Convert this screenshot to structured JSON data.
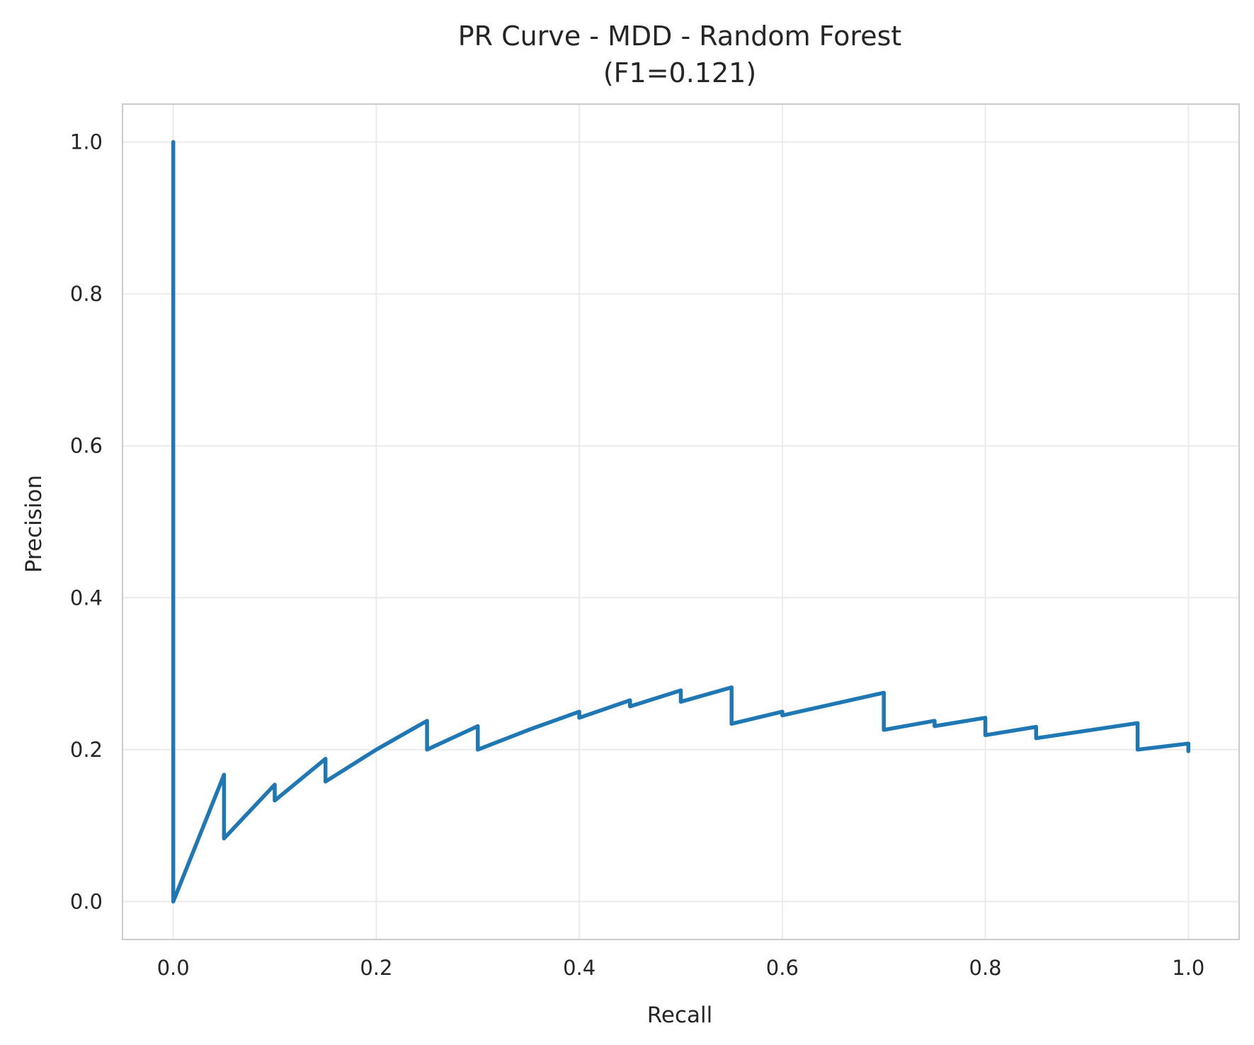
{
  "chart_data": {
    "type": "line",
    "title_line1": "PR Curve - MDD - Random Forest",
    "title_line2": "(F1=0.121)",
    "xlabel": "Recall",
    "ylabel": "Precision",
    "xlim": [
      -0.05,
      1.05
    ],
    "ylim": [
      -0.05,
      1.05
    ],
    "xticks": [
      0.0,
      0.2,
      0.4,
      0.6,
      0.8,
      1.0
    ],
    "xtick_labels": [
      "0.0",
      "0.2",
      "0.4",
      "0.6",
      "0.8",
      "1.0"
    ],
    "yticks": [
      0.0,
      0.2,
      0.4,
      0.6,
      0.8,
      1.0
    ],
    "ytick_labels": [
      "0.0",
      "0.2",
      "0.4",
      "0.6",
      "0.8",
      "1.0"
    ],
    "grid": true,
    "series": [
      {
        "color": "#1f77b4",
        "points": [
          [
            0.0,
            1.0
          ],
          [
            0.0,
            0.0
          ],
          [
            0.05,
            0.167
          ],
          [
            0.05,
            0.083
          ],
          [
            0.1,
            0.154
          ],
          [
            0.1,
            0.133
          ],
          [
            0.15,
            0.188
          ],
          [
            0.15,
            0.158
          ],
          [
            0.2,
            0.2
          ],
          [
            0.25,
            0.238
          ],
          [
            0.25,
            0.2
          ],
          [
            0.3,
            0.231
          ],
          [
            0.3,
            0.2
          ],
          [
            0.35,
            0.226
          ],
          [
            0.4,
            0.25
          ],
          [
            0.4,
            0.242
          ],
          [
            0.45,
            0.265
          ],
          [
            0.45,
            0.257
          ],
          [
            0.5,
            0.278
          ],
          [
            0.5,
            0.263
          ],
          [
            0.55,
            0.282
          ],
          [
            0.55,
            0.234
          ],
          [
            0.6,
            0.25
          ],
          [
            0.6,
            0.245
          ],
          [
            0.7,
            0.275
          ],
          [
            0.7,
            0.226
          ],
          [
            0.75,
            0.238
          ],
          [
            0.75,
            0.231
          ],
          [
            0.8,
            0.242
          ],
          [
            0.8,
            0.219
          ],
          [
            0.85,
            0.23
          ],
          [
            0.85,
            0.215
          ],
          [
            0.95,
            0.235
          ],
          [
            0.95,
            0.2
          ],
          [
            1.0,
            0.208
          ],
          [
            1.0,
            0.198
          ]
        ]
      }
    ]
  }
}
